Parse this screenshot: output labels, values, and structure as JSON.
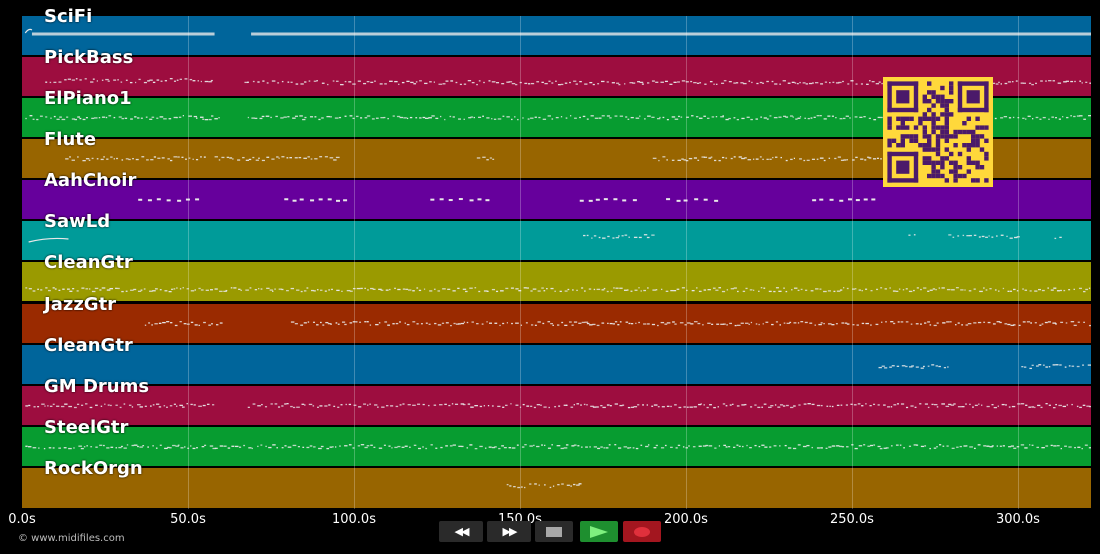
{
  "tracks": [
    {
      "name": "SciFi",
      "color": "#00659b"
    },
    {
      "name": "PickBass",
      "color": "#9d0d3f"
    },
    {
      "name": "ElPiano1",
      "color": "#079c30"
    },
    {
      "name": "Flute",
      "color": "#986500"
    },
    {
      "name": "AahChoir",
      "color": "#66009c"
    },
    {
      "name": "SawLd",
      "color": "#009b99"
    },
    {
      "name": "CleanGtr",
      "color": "#9a9a00"
    },
    {
      "name": "JazzGtr",
      "color": "#9a2a00"
    },
    {
      "name": "CleanGtr",
      "color": "#00659b"
    },
    {
      "name": "GM Drums",
      "color": "#9d0d3f"
    },
    {
      "name": "SteelGtr",
      "color": "#079c30"
    },
    {
      "name": "RockOrgn",
      "color": "#986500"
    }
  ],
  "time_axis": {
    "unit": "s",
    "max_seconds": 322,
    "ticks": [
      "0.0s",
      "50.0s",
      "100.0s",
      "150.0s",
      "200.0s",
      "250.0s",
      "300.0s"
    ],
    "tick_seconds": [
      0,
      50,
      100,
      150,
      200,
      250,
      300
    ]
  },
  "copyright": "© www.midifiles.com",
  "controls": {
    "rewind": "◀◀",
    "fast_forward": "▶▶"
  },
  "colors": {
    "background": "#000000",
    "note": "#e8e8e8",
    "qr_background": "#ffd83b",
    "qr_module": "#4b1a6a",
    "play": "#1e8f2f",
    "record": "#c0242f"
  }
}
